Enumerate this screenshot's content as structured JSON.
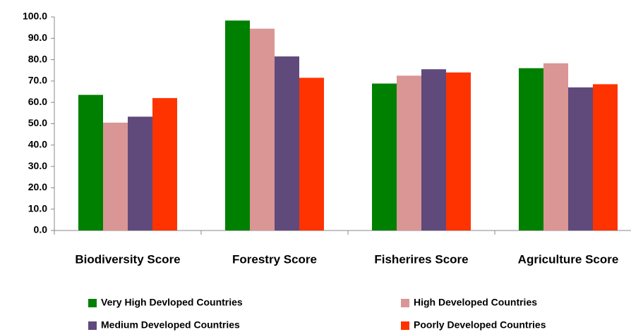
{
  "chart_data": {
    "type": "bar",
    "categories": [
      "Biodiversity Score",
      "Forestry Score",
      "Fisherires Score",
      "Agriculture Score"
    ],
    "series": [
      {
        "name": "Very High Devloped Countries",
        "color": "#008000",
        "values": [
          63.5,
          98.3,
          68.8,
          76.0
        ]
      },
      {
        "name": "High Developed Countries",
        "color": "#d99694",
        "values": [
          50.5,
          94.5,
          72.5,
          78.3
        ]
      },
      {
        "name": "Medium Developed Countries",
        "color": "#604a7b",
        "values": [
          53.3,
          81.5,
          75.5,
          67.0
        ]
      },
      {
        "name": "Poorly Developed Countries",
        "color": "#ff3300",
        "values": [
          62.0,
          71.5,
          74.0,
          68.5
        ]
      }
    ],
    "ylim": [
      0,
      100
    ],
    "yticks": [
      {
        "value": 0,
        "label": "0.0"
      },
      {
        "value": 10,
        "label": "10.0"
      },
      {
        "value": 20,
        "label": "20.0"
      },
      {
        "value": 30,
        "label": "30.0"
      },
      {
        "value": 40,
        "label": "40.0"
      },
      {
        "value": 50,
        "label": "50.0"
      },
      {
        "value": 60,
        "label": "60.0"
      },
      {
        "value": 70,
        "label": "70.0"
      },
      {
        "value": 80,
        "label": "80.0"
      },
      {
        "value": 90,
        "label": "90.0"
      },
      {
        "value": 100,
        "label": "100.0"
      }
    ],
    "grid": false
  }
}
